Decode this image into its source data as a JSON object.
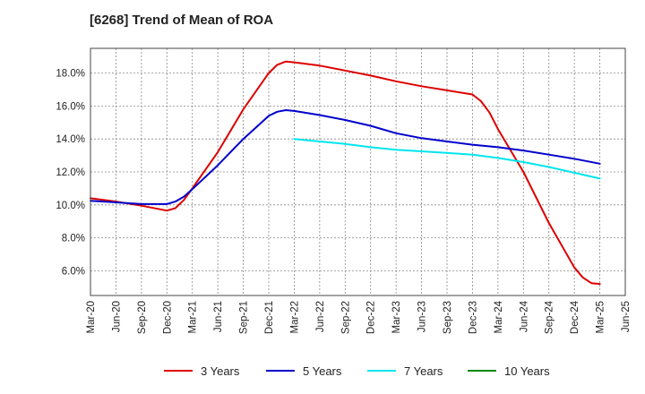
{
  "chart_data": {
    "type": "line",
    "title": "[6268]  Trend of Mean of ROA",
    "xlabel": "",
    "ylabel": "",
    "x": [
      "Mar-20",
      "Jun-20",
      "Sep-20",
      "Dec-20",
      "Mar-21",
      "Jun-21",
      "Sep-21",
      "Dec-21",
      "Mar-22",
      "Jun-22",
      "Sep-22",
      "Dec-22",
      "Mar-23",
      "Jun-23",
      "Sep-23",
      "Dec-23",
      "Mar-24",
      "Jun-24",
      "Sep-24",
      "Dec-24",
      "Mar-25",
      "Jun-25"
    ],
    "ylim": [
      4.5,
      19.5
    ],
    "yticks": [
      6.0,
      8.0,
      10.0,
      12.0,
      14.0,
      16.0,
      18.0
    ],
    "ytick_labels": [
      "6.0%",
      "8.0%",
      "10.0%",
      "12.0%",
      "14.0%",
      "16.0%",
      "18.0%"
    ],
    "grid": true,
    "legend_position": "bottom",
    "series": [
      {
        "name": "3 Years",
        "color": "#dd0000",
        "points": [
          [
            0,
            10.4
          ],
          [
            1,
            10.2
          ],
          [
            2,
            9.95
          ],
          [
            3,
            9.65
          ],
          [
            3.33,
            9.8
          ],
          [
            3.67,
            10.3
          ],
          [
            4,
            11.0
          ],
          [
            5,
            13.2
          ],
          [
            6,
            15.8
          ],
          [
            7,
            18.0
          ],
          [
            7.33,
            18.5
          ],
          [
            7.67,
            18.7
          ],
          [
            8,
            18.65
          ],
          [
            9,
            18.45
          ],
          [
            10,
            18.15
          ],
          [
            11,
            17.85
          ],
          [
            12,
            17.5
          ],
          [
            13,
            17.2
          ],
          [
            14,
            16.95
          ],
          [
            15,
            16.7
          ],
          [
            15.33,
            16.3
          ],
          [
            15.67,
            15.6
          ],
          [
            16,
            14.6
          ],
          [
            17,
            12.0
          ],
          [
            18,
            8.9
          ],
          [
            19,
            6.2
          ],
          [
            19.33,
            5.6
          ],
          [
            19.67,
            5.25
          ],
          [
            20,
            5.2
          ]
        ]
      },
      {
        "name": "5 Years",
        "color": "#0000cc",
        "points": [
          [
            0,
            10.25
          ],
          [
            1,
            10.15
          ],
          [
            2,
            10.05
          ],
          [
            3,
            10.05
          ],
          [
            3.33,
            10.2
          ],
          [
            3.67,
            10.5
          ],
          [
            4,
            10.95
          ],
          [
            5,
            12.4
          ],
          [
            6,
            14.0
          ],
          [
            7,
            15.4
          ],
          [
            7.33,
            15.65
          ],
          [
            7.67,
            15.75
          ],
          [
            8,
            15.7
          ],
          [
            9,
            15.45
          ],
          [
            10,
            15.15
          ],
          [
            11,
            14.8
          ],
          [
            12,
            14.35
          ],
          [
            13,
            14.05
          ],
          [
            14,
            13.85
          ],
          [
            15,
            13.65
          ],
          [
            16,
            13.5
          ],
          [
            17,
            13.3
          ],
          [
            18,
            13.05
          ],
          [
            19,
            12.8
          ],
          [
            20,
            12.5
          ]
        ]
      },
      {
        "name": "7 Years",
        "color": "#00e5ee",
        "points": [
          [
            8,
            14.0
          ],
          [
            9,
            13.85
          ],
          [
            10,
            13.7
          ],
          [
            11,
            13.5
          ],
          [
            12,
            13.35
          ],
          [
            13,
            13.25
          ],
          [
            14,
            13.15
          ],
          [
            15,
            13.05
          ],
          [
            16,
            12.85
          ],
          [
            17,
            12.6
          ],
          [
            18,
            12.3
          ],
          [
            19,
            11.95
          ],
          [
            20,
            11.6
          ]
        ]
      },
      {
        "name": "10 Years",
        "color": "#008800",
        "points": []
      }
    ]
  }
}
